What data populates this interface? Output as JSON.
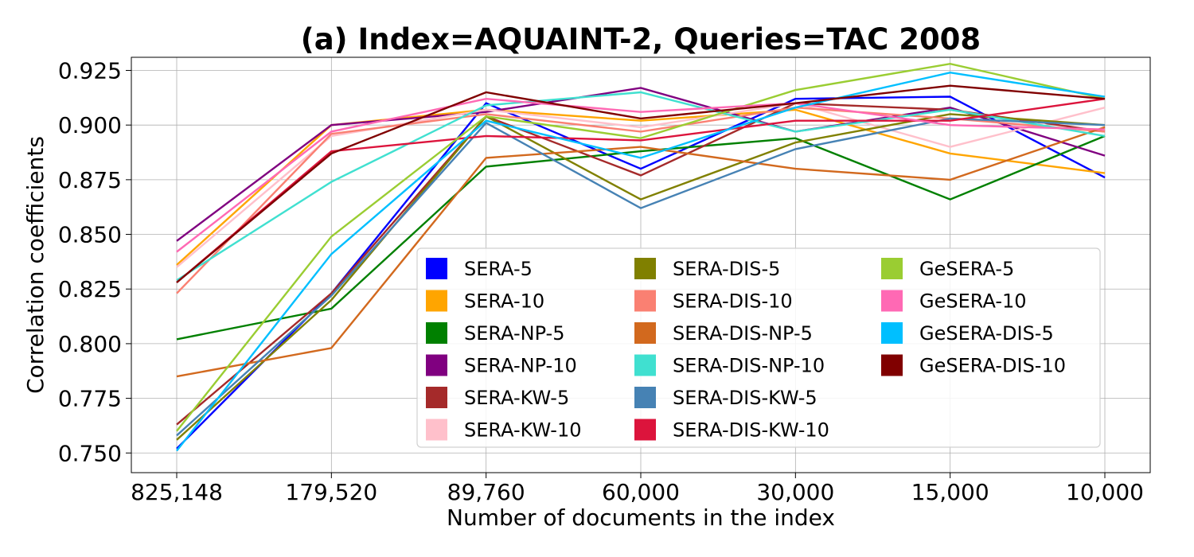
{
  "chart_data": {
    "type": "line",
    "title": "(a) Index=AQUAINT-2, Queries=TAC 2008",
    "xlabel": "Number of documents in the index",
    "ylabel": "Correlation coefficients",
    "categories": [
      "825,148",
      "179,520",
      "89,760",
      "60,000",
      "30,000",
      "15,000",
      "10,000"
    ],
    "ylim": [
      0.741,
      0.931
    ],
    "yticks": [
      0.75,
      0.775,
      0.8,
      0.825,
      0.85,
      0.875,
      0.9,
      0.925
    ],
    "ytick_labels": [
      "0.750",
      "0.775",
      "0.800",
      "0.825",
      "0.850",
      "0.875",
      "0.900",
      "0.925"
    ],
    "grid": true,
    "legend_position": "lower-right",
    "legend_columns": 3,
    "series": [
      {
        "name": "SERA-5",
        "color": "#0000ff",
        "values": [
          0.752,
          0.823,
          0.91,
          0.88,
          0.912,
          0.913,
          0.876
        ]
      },
      {
        "name": "SERA-10",
        "color": "#ffa500",
        "values": [
          0.836,
          0.9,
          0.907,
          0.902,
          0.907,
          0.887,
          0.878
        ]
      },
      {
        "name": "SERA-NP-5",
        "color": "#008000",
        "values": [
          0.802,
          0.816,
          0.881,
          0.888,
          0.894,
          0.866,
          0.895
        ]
      },
      {
        "name": "SERA-NP-10",
        "color": "#800080",
        "values": [
          0.847,
          0.9,
          0.906,
          0.917,
          0.897,
          0.908,
          0.886
        ]
      },
      {
        "name": "SERA-KW-5",
        "color": "#a52a2a",
        "values": [
          0.763,
          0.823,
          0.904,
          0.877,
          0.91,
          0.907,
          0.897
        ]
      },
      {
        "name": "SERA-KW-10",
        "color": "#ffc0cb",
        "values": [
          0.835,
          0.895,
          0.907,
          0.899,
          0.91,
          0.89,
          0.908
        ]
      },
      {
        "name": "SERA-DIS-5",
        "color": "#808000",
        "values": [
          0.756,
          0.82,
          0.904,
          0.866,
          0.892,
          0.905,
          0.9
        ]
      },
      {
        "name": "SERA-DIS-10",
        "color": "#fa8072",
        "values": [
          0.823,
          0.896,
          0.905,
          0.897,
          0.908,
          0.903,
          0.897
        ]
      },
      {
        "name": "SERA-DIS-NP-5",
        "color": "#d2691e",
        "values": [
          0.785,
          0.798,
          0.885,
          0.89,
          0.88,
          0.875,
          0.899
        ]
      },
      {
        "name": "SERA-DIS-NP-10",
        "color": "#40e0d0",
        "values": [
          0.829,
          0.874,
          0.909,
          0.915,
          0.897,
          0.907,
          0.895
        ]
      },
      {
        "name": "SERA-DIS-KW-5",
        "color": "#4682b4",
        "values": [
          0.758,
          0.822,
          0.901,
          0.862,
          0.889,
          0.903,
          0.9
        ]
      },
      {
        "name": "SERA-DIS-KW-10",
        "color": "#dc143c",
        "values": [
          0.828,
          0.888,
          0.895,
          0.893,
          0.902,
          0.902,
          0.912
        ]
      },
      {
        "name": "GeSERA-5",
        "color": "#9acd32",
        "values": [
          0.76,
          0.849,
          0.904,
          0.894,
          0.916,
          0.928,
          0.912
        ]
      },
      {
        "name": "GeSERA-10",
        "color": "#ff69b4",
        "values": [
          0.842,
          0.897,
          0.912,
          0.906,
          0.91,
          0.9,
          0.898
        ]
      },
      {
        "name": "GeSERA-DIS-5",
        "color": "#00bfff",
        "values": [
          0.751,
          0.841,
          0.902,
          0.885,
          0.908,
          0.924,
          0.913
        ]
      },
      {
        "name": "GeSERA-DIS-10",
        "color": "#800000",
        "values": [
          0.828,
          0.887,
          0.915,
          0.903,
          0.91,
          0.918,
          0.912
        ]
      }
    ]
  }
}
